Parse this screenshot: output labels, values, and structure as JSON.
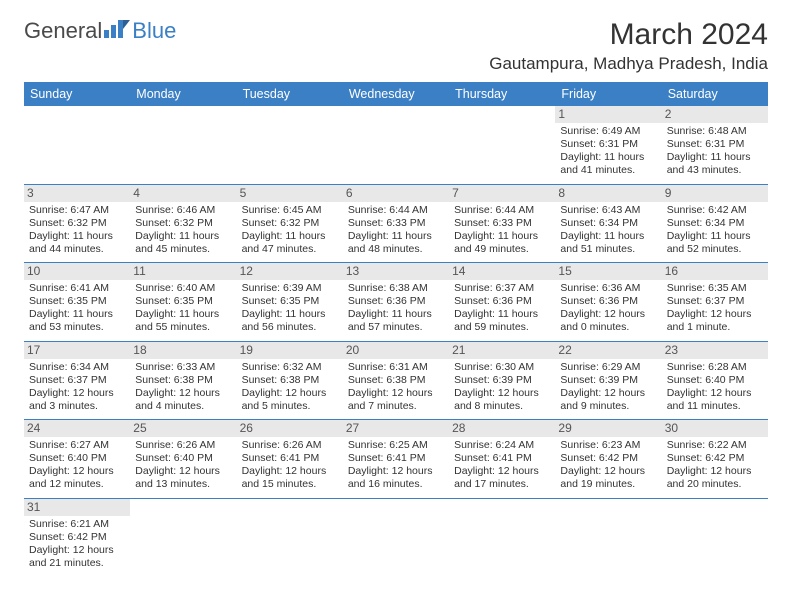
{
  "logo": {
    "part1": "General",
    "part2": "Blue"
  },
  "header": {
    "month_title": "March 2024",
    "location": "Gautampura, Madhya Pradesh, India"
  },
  "colors": {
    "header_bg": "#3b7fc4",
    "header_fg": "#ffffff",
    "daynum_bg": "#e8e8e8",
    "border": "#3b7fc4",
    "text": "#333333",
    "logo_blue": "#3b7fc4"
  },
  "weekdays": [
    "Sunday",
    "Monday",
    "Tuesday",
    "Wednesday",
    "Thursday",
    "Friday",
    "Saturday"
  ],
  "weeks": [
    [
      null,
      null,
      null,
      null,
      null,
      {
        "n": "1",
        "sr": "Sunrise: 6:49 AM",
        "ss": "Sunset: 6:31 PM",
        "dl": "Daylight: 11 hours and 41 minutes."
      },
      {
        "n": "2",
        "sr": "Sunrise: 6:48 AM",
        "ss": "Sunset: 6:31 PM",
        "dl": "Daylight: 11 hours and 43 minutes."
      }
    ],
    [
      {
        "n": "3",
        "sr": "Sunrise: 6:47 AM",
        "ss": "Sunset: 6:32 PM",
        "dl": "Daylight: 11 hours and 44 minutes."
      },
      {
        "n": "4",
        "sr": "Sunrise: 6:46 AM",
        "ss": "Sunset: 6:32 PM",
        "dl": "Daylight: 11 hours and 45 minutes."
      },
      {
        "n": "5",
        "sr": "Sunrise: 6:45 AM",
        "ss": "Sunset: 6:32 PM",
        "dl": "Daylight: 11 hours and 47 minutes."
      },
      {
        "n": "6",
        "sr": "Sunrise: 6:44 AM",
        "ss": "Sunset: 6:33 PM",
        "dl": "Daylight: 11 hours and 48 minutes."
      },
      {
        "n": "7",
        "sr": "Sunrise: 6:44 AM",
        "ss": "Sunset: 6:33 PM",
        "dl": "Daylight: 11 hours and 49 minutes."
      },
      {
        "n": "8",
        "sr": "Sunrise: 6:43 AM",
        "ss": "Sunset: 6:34 PM",
        "dl": "Daylight: 11 hours and 51 minutes."
      },
      {
        "n": "9",
        "sr": "Sunrise: 6:42 AM",
        "ss": "Sunset: 6:34 PM",
        "dl": "Daylight: 11 hours and 52 minutes."
      }
    ],
    [
      {
        "n": "10",
        "sr": "Sunrise: 6:41 AM",
        "ss": "Sunset: 6:35 PM",
        "dl": "Daylight: 11 hours and 53 minutes."
      },
      {
        "n": "11",
        "sr": "Sunrise: 6:40 AM",
        "ss": "Sunset: 6:35 PM",
        "dl": "Daylight: 11 hours and 55 minutes."
      },
      {
        "n": "12",
        "sr": "Sunrise: 6:39 AM",
        "ss": "Sunset: 6:35 PM",
        "dl": "Daylight: 11 hours and 56 minutes."
      },
      {
        "n": "13",
        "sr": "Sunrise: 6:38 AM",
        "ss": "Sunset: 6:36 PM",
        "dl": "Daylight: 11 hours and 57 minutes."
      },
      {
        "n": "14",
        "sr": "Sunrise: 6:37 AM",
        "ss": "Sunset: 6:36 PM",
        "dl": "Daylight: 11 hours and 59 minutes."
      },
      {
        "n": "15",
        "sr": "Sunrise: 6:36 AM",
        "ss": "Sunset: 6:36 PM",
        "dl": "Daylight: 12 hours and 0 minutes."
      },
      {
        "n": "16",
        "sr": "Sunrise: 6:35 AM",
        "ss": "Sunset: 6:37 PM",
        "dl": "Daylight: 12 hours and 1 minute."
      }
    ],
    [
      {
        "n": "17",
        "sr": "Sunrise: 6:34 AM",
        "ss": "Sunset: 6:37 PM",
        "dl": "Daylight: 12 hours and 3 minutes."
      },
      {
        "n": "18",
        "sr": "Sunrise: 6:33 AM",
        "ss": "Sunset: 6:38 PM",
        "dl": "Daylight: 12 hours and 4 minutes."
      },
      {
        "n": "19",
        "sr": "Sunrise: 6:32 AM",
        "ss": "Sunset: 6:38 PM",
        "dl": "Daylight: 12 hours and 5 minutes."
      },
      {
        "n": "20",
        "sr": "Sunrise: 6:31 AM",
        "ss": "Sunset: 6:38 PM",
        "dl": "Daylight: 12 hours and 7 minutes."
      },
      {
        "n": "21",
        "sr": "Sunrise: 6:30 AM",
        "ss": "Sunset: 6:39 PM",
        "dl": "Daylight: 12 hours and 8 minutes."
      },
      {
        "n": "22",
        "sr": "Sunrise: 6:29 AM",
        "ss": "Sunset: 6:39 PM",
        "dl": "Daylight: 12 hours and 9 minutes."
      },
      {
        "n": "23",
        "sr": "Sunrise: 6:28 AM",
        "ss": "Sunset: 6:40 PM",
        "dl": "Daylight: 12 hours and 11 minutes."
      }
    ],
    [
      {
        "n": "24",
        "sr": "Sunrise: 6:27 AM",
        "ss": "Sunset: 6:40 PM",
        "dl": "Daylight: 12 hours and 12 minutes."
      },
      {
        "n": "25",
        "sr": "Sunrise: 6:26 AM",
        "ss": "Sunset: 6:40 PM",
        "dl": "Daylight: 12 hours and 13 minutes."
      },
      {
        "n": "26",
        "sr": "Sunrise: 6:26 AM",
        "ss": "Sunset: 6:41 PM",
        "dl": "Daylight: 12 hours and 15 minutes."
      },
      {
        "n": "27",
        "sr": "Sunrise: 6:25 AM",
        "ss": "Sunset: 6:41 PM",
        "dl": "Daylight: 12 hours and 16 minutes."
      },
      {
        "n": "28",
        "sr": "Sunrise: 6:24 AM",
        "ss": "Sunset: 6:41 PM",
        "dl": "Daylight: 12 hours and 17 minutes."
      },
      {
        "n": "29",
        "sr": "Sunrise: 6:23 AM",
        "ss": "Sunset: 6:42 PM",
        "dl": "Daylight: 12 hours and 19 minutes."
      },
      {
        "n": "30",
        "sr": "Sunrise: 6:22 AM",
        "ss": "Sunset: 6:42 PM",
        "dl": "Daylight: 12 hours and 20 minutes."
      }
    ],
    [
      {
        "n": "31",
        "sr": "Sunrise: 6:21 AM",
        "ss": "Sunset: 6:42 PM",
        "dl": "Daylight: 12 hours and 21 minutes."
      },
      null,
      null,
      null,
      null,
      null,
      null
    ]
  ]
}
